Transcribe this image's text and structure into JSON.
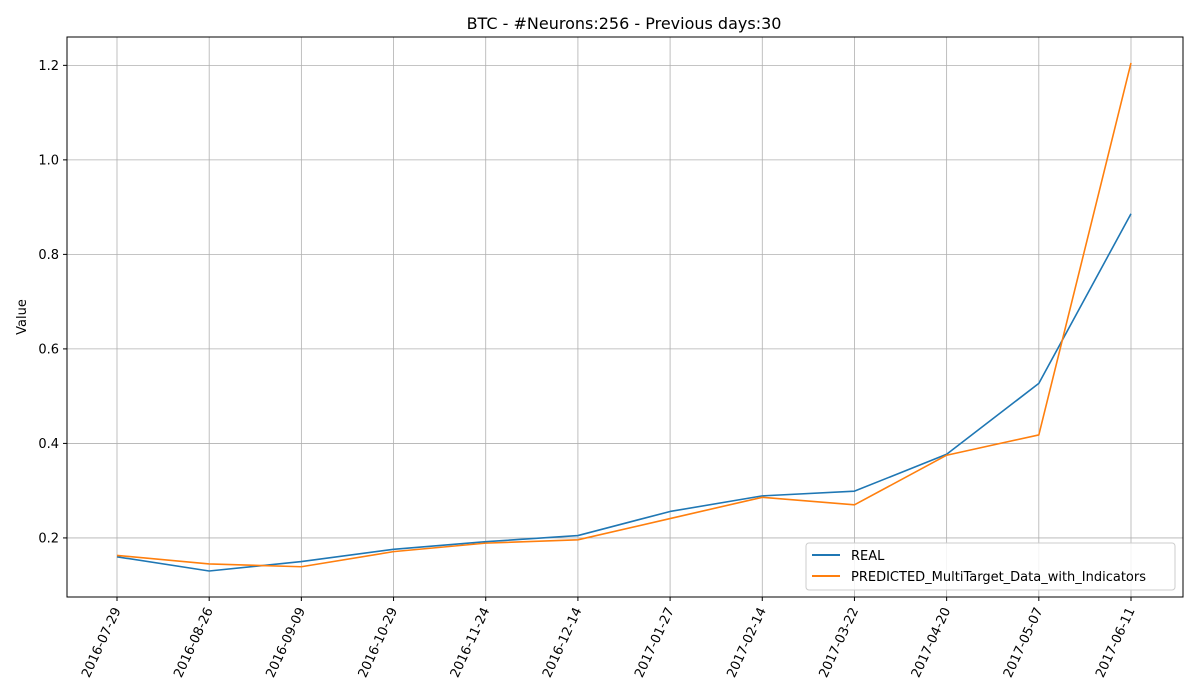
{
  "chart_data": {
    "type": "line",
    "title": "BTC - #Neurons:256 - Previous days:30",
    "xlabel": "",
    "ylabel": "Value",
    "categories": [
      "2016-07-29",
      "2016-08-26",
      "2016-09-09",
      "2016-10-29",
      "2016-11-24",
      "2016-12-14",
      "2017-01-27",
      "2017-02-14",
      "2017-03-22",
      "2017-04-20",
      "2017-05-07",
      "2017-06-11"
    ],
    "ylim": [
      0.075,
      1.26
    ],
    "yticks": [
      0.2,
      0.4,
      0.6,
      0.8,
      1.0,
      1.2
    ],
    "ytick_labels": [
      "0.2",
      "0.4",
      "0.6",
      "0.8",
      "1.0",
      "1.2"
    ],
    "grid": true,
    "legend_position": "lower-right",
    "series": [
      {
        "name": "REAL",
        "color": "#1f77b4",
        "values": [
          0.16,
          0.13,
          0.15,
          0.176,
          0.192,
          0.205,
          0.256,
          0.289,
          0.299,
          0.377,
          0.527,
          0.886
        ]
      },
      {
        "name": "PREDICTED_MultiTarget_Data_with_Indicators",
        "color": "#ff7f0e",
        "values": [
          0.163,
          0.145,
          0.139,
          0.171,
          0.189,
          0.196,
          0.241,
          0.286,
          0.27,
          0.375,
          0.418,
          1.205
        ]
      }
    ]
  }
}
